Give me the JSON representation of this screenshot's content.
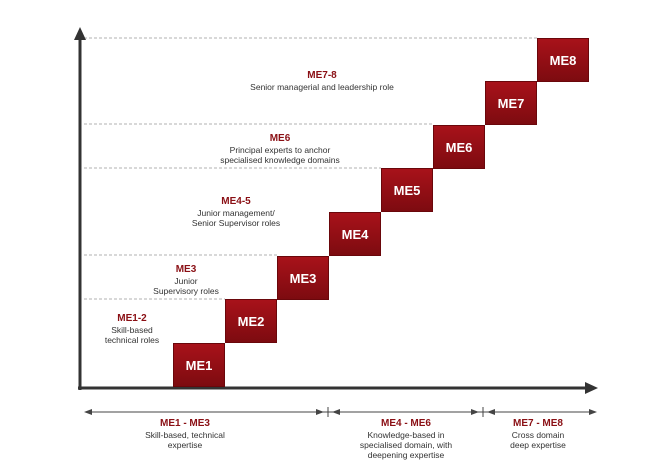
{
  "steps": [
    {
      "label": "ME1"
    },
    {
      "label": "ME2"
    },
    {
      "label": "ME3"
    },
    {
      "label": "ME4"
    },
    {
      "label": "ME5"
    },
    {
      "label": "ME6"
    },
    {
      "label": "ME7"
    },
    {
      "label": "ME8"
    }
  ],
  "levels": [
    {
      "code": "ME1-2",
      "desc": "Skill-based\ntechnical roles"
    },
    {
      "code": "ME3",
      "desc": "Junior\nSupervisory roles"
    },
    {
      "code": "ME4-5",
      "desc": "Junior management/\nSenior Supervisor roles"
    },
    {
      "code": "ME6",
      "desc": "Principal experts to anchor\nspecialised knowledge domains"
    },
    {
      "code": "ME7-8",
      "desc": "Senior managerial and leadership role"
    }
  ],
  "bands": [
    {
      "code": "ME1 - ME3",
      "desc": "Skill-based, technical\nexpertise"
    },
    {
      "code": "ME4 - ME6",
      "desc": "Knowledge-based in\nspecialised domain, with\ndeepening expertise"
    },
    {
      "code": "ME7 - ME8",
      "desc": "Cross domain\ndeep expertise"
    }
  ],
  "colors": {
    "step": "#8a0f14",
    "level_code": "#8a0f14",
    "axis": "#333333",
    "guide": "#999999"
  }
}
